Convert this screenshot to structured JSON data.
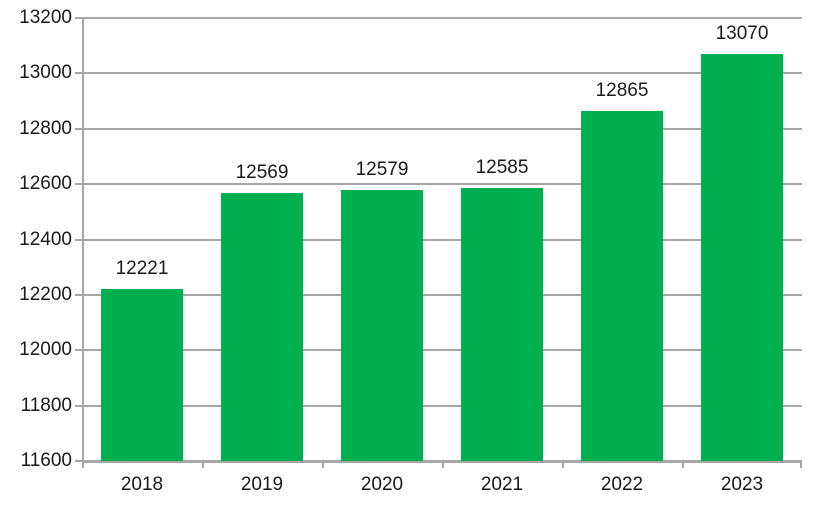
{
  "chart_data": {
    "type": "bar",
    "title": "",
    "xlabel": "",
    "ylabel": "",
    "categories": [
      "2018",
      "2019",
      "2020",
      "2021",
      "2022",
      "2023"
    ],
    "values": [
      12221,
      12569,
      12579,
      12585,
      12865,
      13070
    ],
    "data_labels": [
      "12221",
      "12569",
      "12579",
      "12585",
      "12865",
      "13070"
    ],
    "ylim": [
      11600,
      13200
    ],
    "ytick_step": 200,
    "ytick_labels": [
      "11600",
      "11800",
      "12000",
      "12200",
      "12400",
      "12600",
      "12800",
      "13000",
      "13200"
    ],
    "grid": "horizontal",
    "legend_position": "none",
    "bar_color": "#00B050",
    "gridline_color": "#A6A6A6",
    "axis_color": "#A6A6A6",
    "text_color": "#1A1A1A",
    "background_color": "#FFFFFF"
  }
}
